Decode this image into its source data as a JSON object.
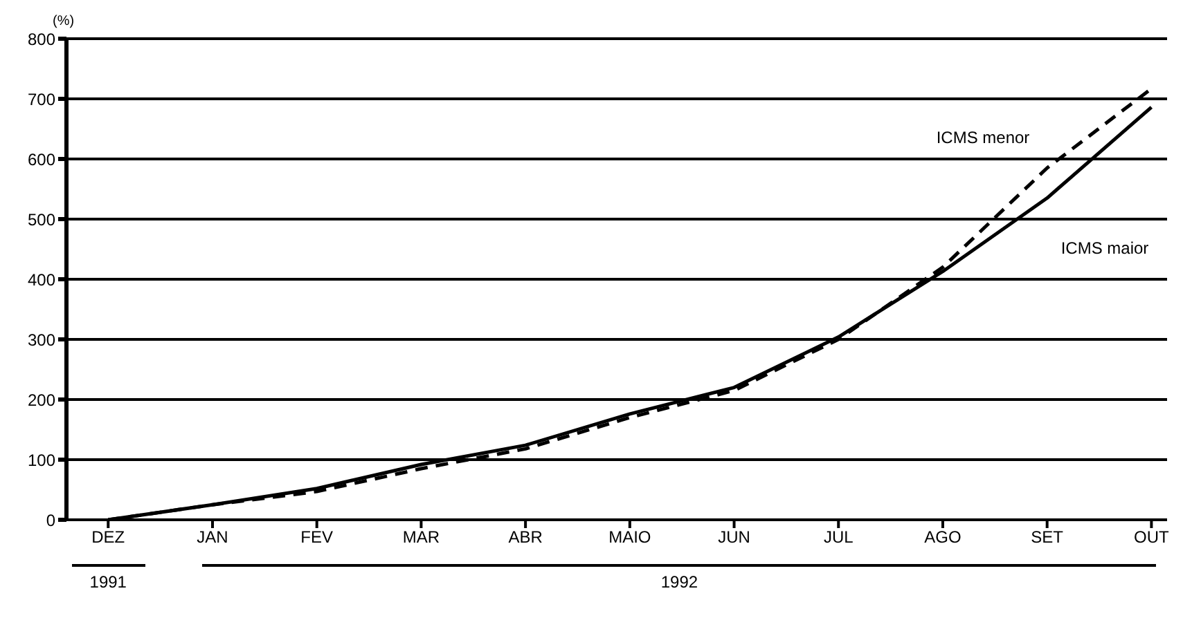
{
  "chart_data": {
    "type": "line",
    "ylabel": "(%)",
    "categories": [
      "DEZ",
      "JAN",
      "FEV",
      "MAR",
      "ABR",
      "MAIO",
      "JUN",
      "JUL",
      "AGO",
      "SET",
      "OUT"
    ],
    "series": [
      {
        "name": "ICMS menor",
        "color": "#000000",
        "line_style": "dashed",
        "values": [
          0,
          25,
          47,
          85,
          118,
          170,
          215,
          300,
          420,
          585,
          717
        ]
      },
      {
        "name": "ICMS maior",
        "color": "#000000",
        "line_style": "solid",
        "values": [
          0,
          25,
          52,
          92,
          124,
          176,
          220,
          304,
          413,
          535,
          686
        ]
      }
    ],
    "ylim": [
      0,
      800
    ],
    "yticks": [
      0,
      100,
      200,
      300,
      400,
      500,
      600,
      700,
      800
    ],
    "grid": "y",
    "marker": "none",
    "annotations": [
      "1991",
      "1992"
    ]
  }
}
